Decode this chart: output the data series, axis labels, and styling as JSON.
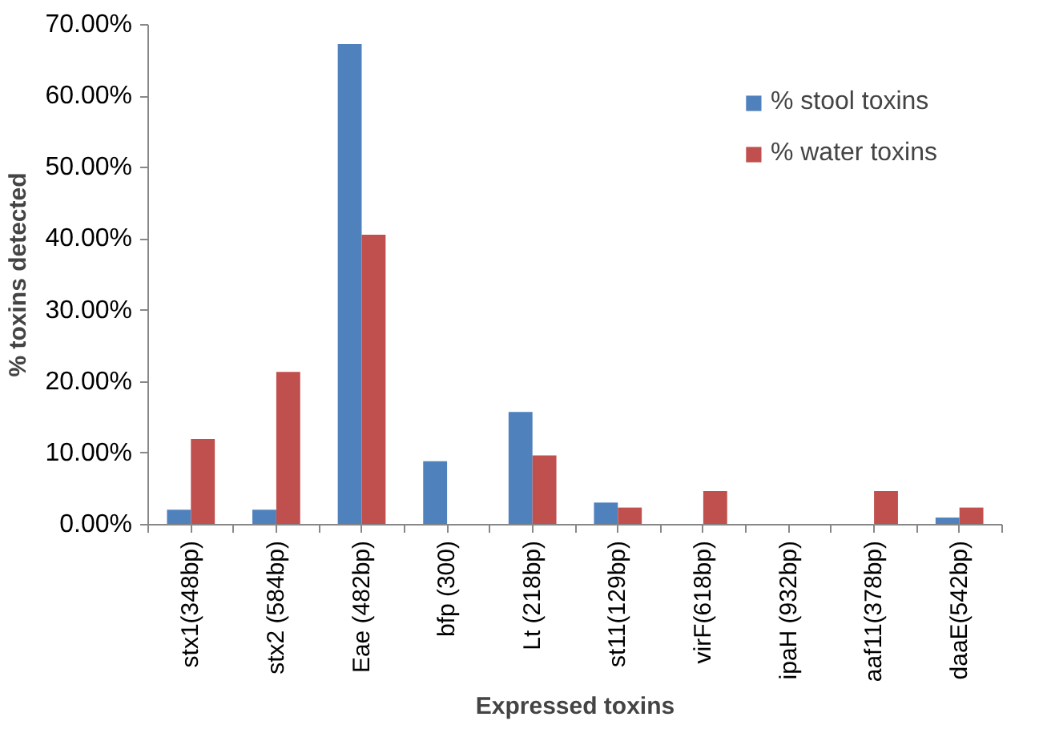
{
  "chart_data": {
    "type": "bar",
    "xlabel": "Expressed toxins",
    "ylabel": "% toxins detected",
    "categories": [
      "stx1(348bp)",
      "stx2 (584bp)",
      "Eae (482bp)",
      "bfp (300)",
      "Lt (218bp)",
      "st11(129bp)",
      "virF(618bp)",
      "ipaH (932bp)",
      "aaf11(378bp)",
      "daaE(542bp)"
    ],
    "series": [
      {
        "name": "% stool toxins",
        "color": "#4f81bd",
        "values": [
          2.1,
          2.1,
          67.3,
          8.9,
          15.8,
          3.1,
          0,
          0,
          0,
          1.0
        ]
      },
      {
        "name": "% water toxins",
        "color": "#c0504d",
        "values": [
          12.0,
          21.4,
          40.6,
          0,
          9.7,
          2.4,
          4.7,
          0,
          4.7,
          2.4
        ]
      }
    ],
    "ylim": [
      0,
      70
    ],
    "yticks": [
      {
        "value": 0,
        "label": "0.00%"
      },
      {
        "value": 10,
        "label": "10.00%"
      },
      {
        "value": 20,
        "label": "20.00%"
      },
      {
        "value": 30,
        "label": "30.00%"
      },
      {
        "value": 40,
        "label": "40.00%"
      },
      {
        "value": 50,
        "label": "50.00%"
      },
      {
        "value": 60,
        "label": "60.00%"
      },
      {
        "value": 70,
        "label": "70.00%"
      }
    ],
    "grid": false,
    "legend": "top right"
  }
}
